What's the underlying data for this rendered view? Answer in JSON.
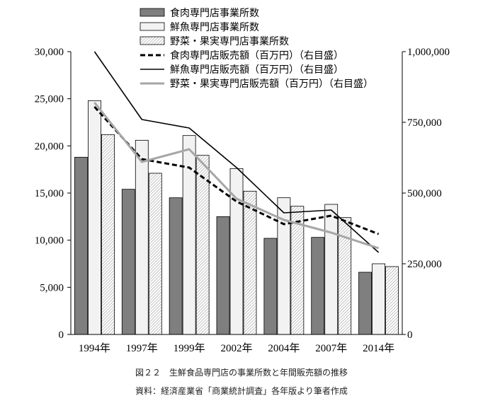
{
  "chart_data": {
    "type": "bar",
    "categories": [
      "1994年",
      "1997年",
      "1999年",
      "2002年",
      "2004年",
      "2007年",
      "2014年"
    ],
    "series": [
      {
        "name": "食肉専門店事業所数",
        "kind": "bar",
        "axis": "left",
        "color": "#7f7f7f",
        "values": [
          18800,
          15400,
          14500,
          12500,
          10200,
          10300,
          6600
        ]
      },
      {
        "name": "鮮魚専門店事業所数",
        "kind": "bar",
        "axis": "left",
        "color": "#f2f2f2",
        "values": [
          24800,
          20600,
          21100,
          17600,
          14500,
          13800,
          7500
        ]
      },
      {
        "name": "野菜・果実専門店事業所数",
        "kind": "bar",
        "axis": "left",
        "color": "hatch",
        "values": [
          21200,
          17100,
          19000,
          15200,
          13600,
          12400,
          7200
        ]
      },
      {
        "name": "食肉専門店販売額（百万円）（右目盛）",
        "kind": "line",
        "axis": "right",
        "color": "#000000",
        "style": "dashed",
        "values": [
          805000,
          620000,
          590000,
          470000,
          390000,
          420000,
          355000
        ]
      },
      {
        "name": "鮮魚専門店販売額（百万円）（右目盛）",
        "kind": "line",
        "axis": "right",
        "color": "#000000",
        "style": "solid",
        "values": [
          1000000,
          760000,
          730000,
          590000,
          430000,
          440000,
          290000
        ]
      },
      {
        "name": "野菜・果実専門店販売額（百万円）（右目盛）",
        "kind": "line",
        "axis": "right",
        "color": "#a6a6a6",
        "style": "solid-thick",
        "values": [
          820000,
          610000,
          655000,
          480000,
          405000,
          360000,
          305000
        ]
      }
    ],
    "y_left": {
      "min": 0,
      "max": 30000,
      "ticks": [
        "0",
        "5,000",
        "10,000",
        "15,000",
        "20,000",
        "25,000",
        "30,000"
      ]
    },
    "y_right": {
      "min": 0,
      "max": 1000000,
      "ticks": [
        "0",
        "250,000",
        "500,000",
        "750,000",
        "1,000,000"
      ]
    },
    "legend_position": "top-right",
    "grid": false
  },
  "caption": {
    "line1": "図２２　生鮮食品専門店の事業所数と年間販売額の推移",
    "line2": "資料：経済産業省「商業統計調査」各年版より筆者作成"
  }
}
